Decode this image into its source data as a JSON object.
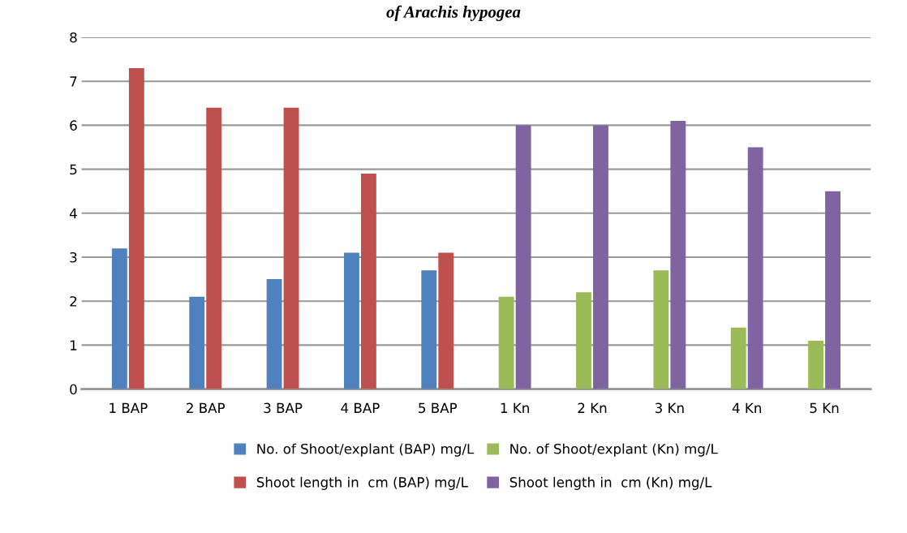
{
  "chart_data": {
    "type": "bar",
    "title": "of Arachis hypogea",
    "categories": [
      "1 BAP",
      "2 BAP",
      "3 BAP",
      "4 BAP",
      "5 BAP",
      "1 Kn",
      "2 Kn",
      "3 Kn",
      "4 Kn",
      "5 Kn"
    ],
    "series": [
      {
        "name": "No. of Shoot/explant (BAP) mg/L",
        "color": "#4f81bd",
        "values": [
          3.2,
          2.1,
          2.5,
          3.1,
          2.7,
          null,
          null,
          null,
          null,
          null
        ]
      },
      {
        "name": "Shoot length in  cm (BAP) mg/L",
        "color": "#c0504d",
        "values": [
          7.3,
          6.4,
          6.4,
          4.9,
          3.1,
          null,
          null,
          null,
          null,
          null
        ]
      },
      {
        "name": "No. of Shoot/explant (Kn) mg/L",
        "color": "#9bbb59",
        "values": [
          null,
          null,
          null,
          null,
          null,
          2.1,
          2.2,
          2.7,
          1.4,
          1.1
        ]
      },
      {
        "name": "Shoot length in  cm (Kn) mg/L",
        "color": "#8064a2",
        "values": [
          null,
          null,
          null,
          null,
          null,
          6.0,
          6.0,
          6.1,
          5.5,
          4.5
        ]
      }
    ],
    "ylim": [
      0,
      8
    ],
    "yticks": [
      0,
      1,
      2,
      3,
      4,
      5,
      6,
      7,
      8
    ],
    "grid": "y",
    "legend": "bottom"
  }
}
